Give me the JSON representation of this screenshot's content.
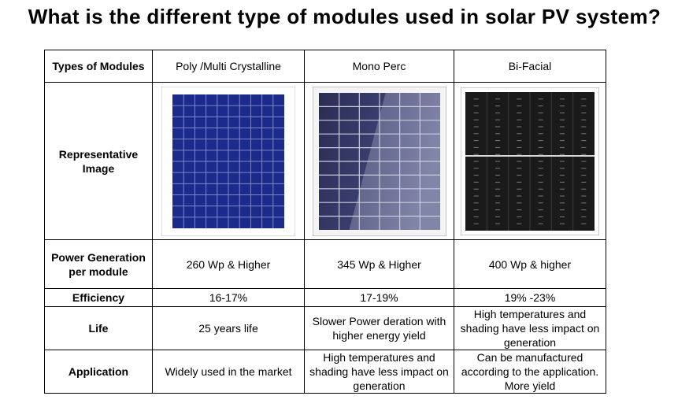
{
  "title": "What is the different type of modules used in solar PV system?",
  "table": {
    "columns": [
      "Poly /Multi Crystalline",
      "Mono Perc",
      "Bi-Facial"
    ],
    "rows": [
      {
        "label": "Types of Modules"
      },
      {
        "label": "Representative Image",
        "images": [
          "poly-panel-image",
          "mono-panel-image",
          "bifacial-panel-image"
        ]
      },
      {
        "label": "Power Generation per module",
        "cells": [
          "260 Wp & Higher",
          "345 Wp & Higher",
          "400 Wp & higher"
        ]
      },
      {
        "label": "Efficiency",
        "cells": [
          "16-17%",
          "17-19%",
          "19% -23%"
        ]
      },
      {
        "label": "Life",
        "cells": [
          "25 years life",
          "Slower Power deration with higher energy yield",
          "High temperatures and shading have less impact on generation"
        ]
      },
      {
        "label": "Application",
        "cells": [
          "Widely used in the market",
          "High temperatures and shading have less impact on generation",
          "Can be manufactured according to the application. More yield"
        ]
      }
    ]
  },
  "colors": {
    "poly_panel": "#1c2a8c",
    "mono_panel": "#2a2f5a",
    "bifacial_panel": "#1a1a1a"
  }
}
